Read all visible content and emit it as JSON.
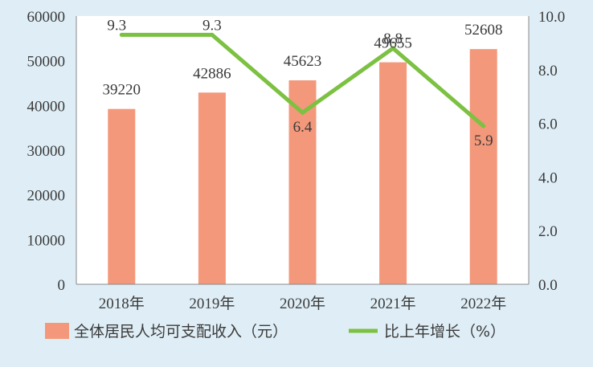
{
  "chart_data": {
    "type": "bar",
    "categories": [
      "2018年",
      "2019年",
      "2020年",
      "2021年",
      "2022年"
    ],
    "series": [
      {
        "name": "全体居民人均可支配收入（元）",
        "type": "bar",
        "axis": "left",
        "values": [
          39220,
          42886,
          45623,
          49655,
          52608
        ],
        "labels": [
          "39220",
          "42886",
          "45623",
          "49655",
          "52608"
        ]
      },
      {
        "name": "比上年增长（%）",
        "type": "line",
        "axis": "right",
        "values": [
          9.3,
          9.3,
          6.4,
          8.8,
          5.9
        ],
        "labels": [
          "9.3",
          "9.3",
          "6.4",
          "8.8",
          "5.9"
        ]
      }
    ],
    "y_left": {
      "ylim": [
        0,
        60000
      ],
      "ticks": [
        "0",
        "10000",
        "20000",
        "30000",
        "40000",
        "50000",
        "60000"
      ]
    },
    "y_right": {
      "ylim": [
        0,
        10
      ],
      "ticks": [
        "0.0",
        "2.0",
        "4.0",
        "6.0",
        "8.0",
        "10.0"
      ]
    },
    "grid": false,
    "legend_position": "bottom",
    "colors": {
      "bar": "#f3987a",
      "line": "#7cc142",
      "background": "#dfeef6",
      "plot": "#ffffff"
    }
  }
}
